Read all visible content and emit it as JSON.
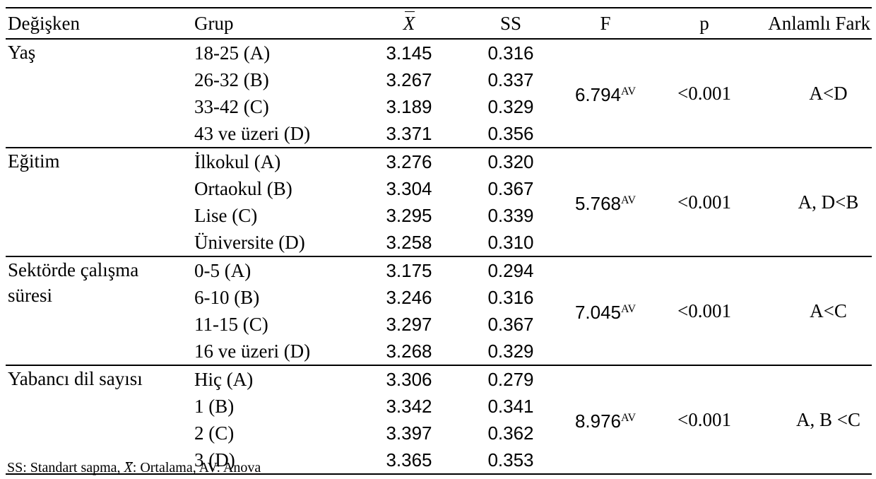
{
  "table": {
    "headers": {
      "variable": "Değişken",
      "group": "Grup",
      "mean": "X",
      "sd": "SS",
      "f": "F",
      "p": "p",
      "difference": "Anlamlı Fark"
    },
    "sections": [
      {
        "variable": "Yaş",
        "f": "6.794",
        "f_sup": "AV",
        "p": "<0.001",
        "difference": "A<D",
        "rows": [
          {
            "group": "18-25 (A)",
            "mean": "3.145",
            "sd": "0.316"
          },
          {
            "group": "26-32 (B)",
            "mean": "3.267",
            "sd": "0.337"
          },
          {
            "group": "33-42 (C)",
            "mean": "3.189",
            "sd": "0.329"
          },
          {
            "group": "43 ve üzeri (D)",
            "mean": "3.371",
            "sd": "0.356"
          }
        ]
      },
      {
        "variable": "Eğitim",
        "f": "5.768",
        "f_sup": "AV",
        "p": "<0.001",
        "difference": "A, D<B",
        "rows": [
          {
            "group": "İlkokul (A)",
            "mean": "3.276",
            "sd": "0.320"
          },
          {
            "group": "Ortaokul (B)",
            "mean": "3.304",
            "sd": "0.367"
          },
          {
            "group": "Lise (C)",
            "mean": "3.295",
            "sd": "0.339"
          },
          {
            "group": "Üniversite (D)",
            "mean": "3.258",
            "sd": "0.310"
          }
        ]
      },
      {
        "variable_line1": "Sektörde çalışma",
        "variable_line2": "süresi",
        "f": "7.045",
        "f_sup": "AV",
        "p": "<0.001",
        "difference": "A<C",
        "rows": [
          {
            "group": "0-5 (A)",
            "mean": "3.175",
            "sd": "0.294"
          },
          {
            "group": "6-10 (B)",
            "mean": "3.246",
            "sd": "0.316"
          },
          {
            "group": "11-15 (C)",
            "mean": "3.297",
            "sd": "0.367"
          },
          {
            "group": "16 ve üzeri (D)",
            "mean": "3.268",
            "sd": "0.329"
          }
        ]
      },
      {
        "variable": "Yabancı dil sayısı",
        "f": "8.976",
        "f_sup": "AV",
        "p": "<0.001",
        "difference": "A, B <C",
        "rows": [
          {
            "group": "Hiç (A)",
            "mean": "3.306",
            "sd": "0.279"
          },
          {
            "group": "1 (B)",
            "mean": "3.342",
            "sd": "0.341"
          },
          {
            "group": "2 (C)",
            "mean": "3.397",
            "sd": "0.362"
          },
          {
            "group": "3 (D)",
            "mean": "3.365",
            "sd": "0.353"
          }
        ]
      }
    ]
  },
  "footnote": {
    "part1": "SS: Standart sapma, ",
    "symbol": "X",
    "part2": ": Ortalama, AV: Anova"
  }
}
